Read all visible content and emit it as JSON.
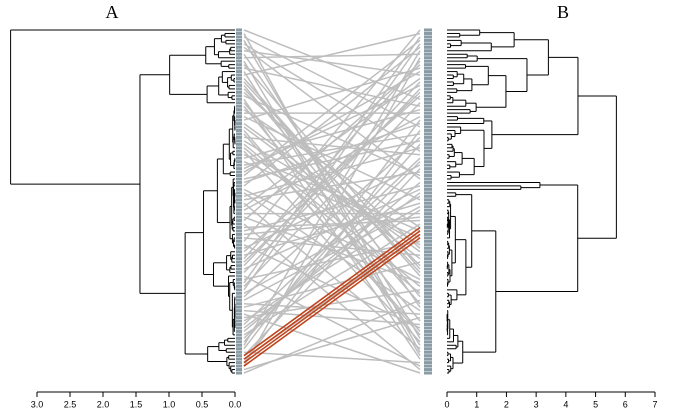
{
  "chart_data": {
    "type": "tanglegram",
    "left": {
      "title": "A",
      "xlim": [
        3,
        0
      ],
      "xticks": [
        {
          "value": 3,
          "label": "3.0"
        },
        {
          "value": 2.5,
          "label": "2.5"
        },
        {
          "value": 2,
          "label": "2.0"
        },
        {
          "value": 1.5,
          "label": "1.5"
        },
        {
          "value": 1,
          "label": "1.0"
        },
        {
          "value": 0.5,
          "label": "0.5"
        },
        {
          "value": 0,
          "label": "0.0"
        }
      ]
    },
    "right": {
      "title": "B",
      "xlim": [
        0,
        7
      ],
      "xticks": [
        0,
        1,
        2,
        3,
        4,
        5,
        6,
        7
      ]
    },
    "line_color": "#bebebe",
    "highlight_color": "#c0441c"
  }
}
